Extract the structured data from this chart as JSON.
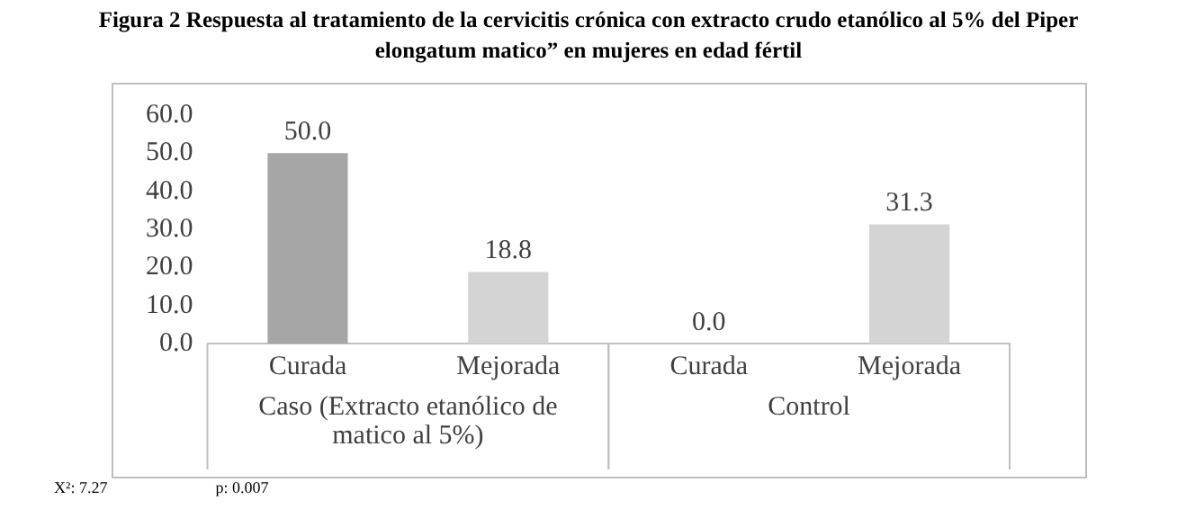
{
  "chart_data": {
    "type": "bar",
    "title": "Figura 2 Respuesta  al tratamiento de la cervicitis crónica con extracto crudo etanólico al 5% del Piper elongatum matico” en mujeres en edad fértil",
    "categories": [
      "Curada",
      "Mejorada",
      "Curada",
      "Mejorada"
    ],
    "values": [
      50.0,
      18.8,
      0.0,
      31.3
    ],
    "colors": [
      "#a6a6a6",
      "#d4d4d4",
      "#d4d4d4",
      "#d4d4d4"
    ],
    "ylim": [
      0,
      60
    ],
    "yticks": [
      {
        "value": 0,
        "label": "0.0"
      },
      {
        "value": 10,
        "label": "10.0"
      },
      {
        "value": 20,
        "label": "20.0"
      },
      {
        "value": 30,
        "label": "30.0"
      },
      {
        "value": 40,
        "label": "40.0"
      },
      {
        "value": 50,
        "label": "50.0"
      },
      {
        "value": 60,
        "label": "60.0"
      }
    ],
    "value_labels": [
      "50.0",
      "18.8",
      "0.0",
      "31.3"
    ],
    "grid": false,
    "legend": false,
    "annotations": [
      "Caso (Extracto etanólico de matico al 5%)",
      "Control",
      "X²: 7.27",
      "p: 0.007"
    ]
  }
}
